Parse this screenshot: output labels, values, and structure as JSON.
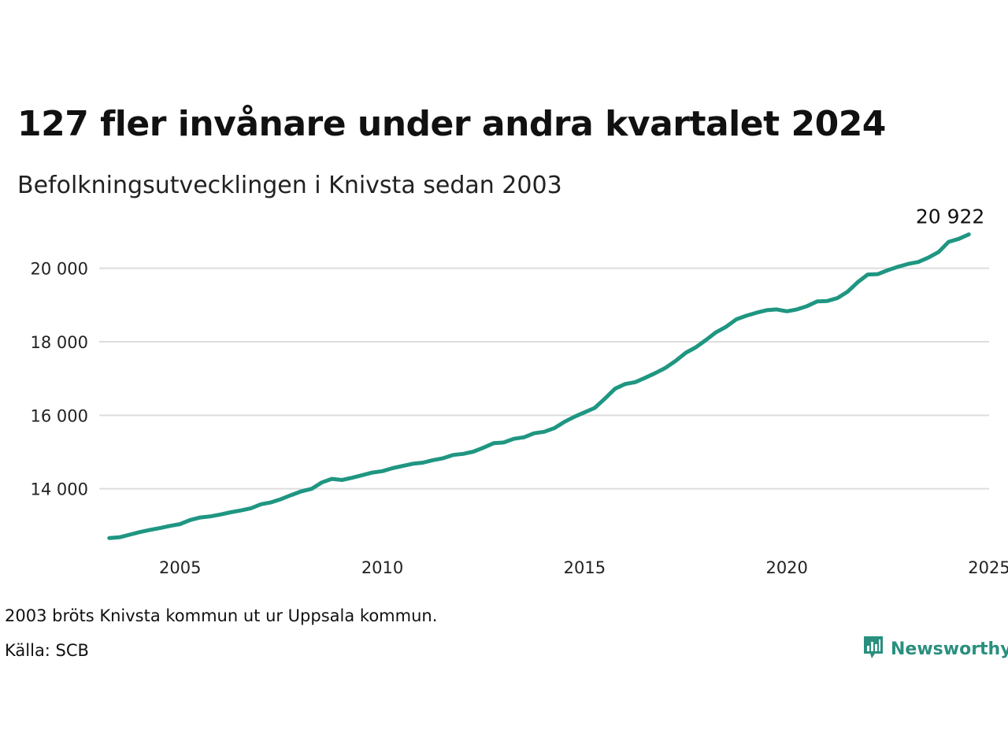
{
  "header": {
    "title": "127 fler invånare under andra kvartalet 2024",
    "subtitle": "Befolkningsutvecklingen i Knivsta sedan 2003"
  },
  "footer": {
    "note": "2003 bröts Knivsta kommun ut ur Uppsala kommun.",
    "source": "Källa: SCB",
    "brand": "Newsworthy",
    "brand_icon": "bar-chart-speech-bubble-icon"
  },
  "colors": {
    "line": "#1f9682",
    "grid": "#dddddd",
    "brand": "#2a8f7e"
  },
  "chart_data": {
    "type": "line",
    "title": "127 fler invånare under andra kvartalet 2024",
    "subtitle": "Befolkningsutvecklingen i Knivsta sedan 2003",
    "xlabel": "",
    "ylabel": "",
    "xlim": [
      2003,
      2025
    ],
    "ylim": [
      12300,
      21300
    ],
    "xticks": [
      2005,
      2010,
      2015,
      2020,
      2025
    ],
    "xtick_labels": [
      "2005",
      "2010",
      "2015",
      "2020",
      "2025"
    ],
    "yticks": [
      14000,
      16000,
      18000,
      20000
    ],
    "ytick_labels": [
      "14 000",
      "16 000",
      "18 000",
      "20 000"
    ],
    "grid": "horizontal",
    "end_label": "20 922",
    "series": [
      {
        "name": "",
        "x": [
          2003.25,
          2003.5,
          2003.75,
          2004.0,
          2004.25,
          2004.5,
          2004.75,
          2005.0,
          2005.25,
          2005.5,
          2005.75,
          2006.0,
          2006.25,
          2006.5,
          2006.75,
          2007.0,
          2007.25,
          2007.5,
          2007.75,
          2008.0,
          2008.25,
          2008.5,
          2008.75,
          2009.0,
          2009.25,
          2009.5,
          2009.75,
          2010.0,
          2010.25,
          2010.5,
          2010.75,
          2011.0,
          2011.25,
          2011.5,
          2011.75,
          2012.0,
          2012.25,
          2012.5,
          2012.75,
          2013.0,
          2013.25,
          2013.5,
          2013.75,
          2014.0,
          2014.25,
          2014.5,
          2014.75,
          2015.0,
          2015.25,
          2015.5,
          2015.75,
          2016.0,
          2016.25,
          2016.5,
          2016.75,
          2017.0,
          2017.25,
          2017.5,
          2017.75,
          2018.0,
          2018.25,
          2018.5,
          2018.75,
          2019.0,
          2019.25,
          2019.5,
          2019.75,
          2020.0,
          2020.25,
          2020.5,
          2020.75,
          2021.0,
          2021.25,
          2021.5,
          2021.75,
          2022.0,
          2022.25,
          2022.5,
          2022.75,
          2023.0,
          2023.25,
          2023.5,
          2023.75,
          2024.0,
          2024.25,
          2024.5
        ],
        "values": [
          12660,
          12680,
          12750,
          12820,
          12880,
          12930,
          12990,
          13040,
          13150,
          13220,
          13250,
          13300,
          13360,
          13410,
          13470,
          13580,
          13630,
          13720,
          13830,
          13930,
          14000,
          14170,
          14270,
          14240,
          14300,
          14370,
          14440,
          14480,
          14560,
          14620,
          14680,
          14710,
          14780,
          14830,
          14920,
          14950,
          15010,
          15120,
          15240,
          15260,
          15360,
          15400,
          15510,
          15550,
          15650,
          15820,
          15960,
          16080,
          16200,
          16450,
          16720,
          16850,
          16900,
          17020,
          17150,
          17290,
          17480,
          17700,
          17850,
          18050,
          18260,
          18410,
          18610,
          18710,
          18790,
          18860,
          18880,
          18830,
          18880,
          18970,
          19100,
          19110,
          19190,
          19360,
          19620,
          19830,
          19840,
          19950,
          20040,
          20120,
          20170,
          20290,
          20440,
          20720,
          20800,
          20922
        ]
      }
    ]
  }
}
